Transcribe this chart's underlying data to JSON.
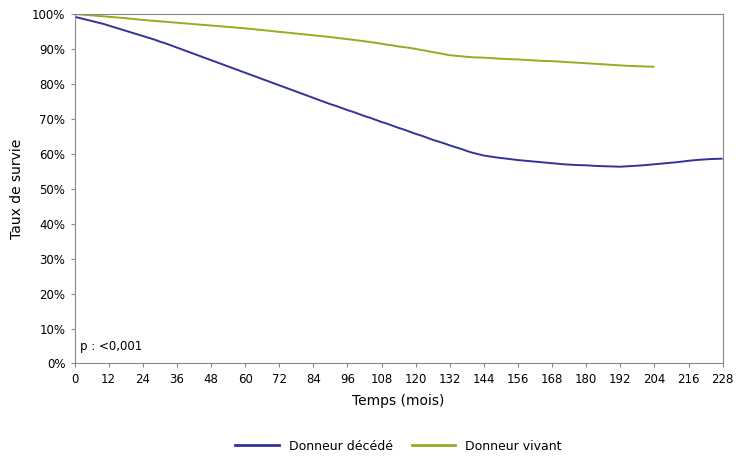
{
  "xlabel": "Temps (mois)",
  "ylabel": "Taux de survie",
  "annotation": "p : <0,001",
  "xticks": [
    0,
    12,
    24,
    36,
    48,
    60,
    72,
    84,
    96,
    108,
    120,
    132,
    144,
    156,
    168,
    180,
    192,
    204,
    216,
    228
  ],
  "yticks": [
    0,
    10,
    20,
    30,
    40,
    50,
    60,
    70,
    80,
    90,
    100
  ],
  "xlim": [
    0,
    228
  ],
  "ylim": [
    0,
    100
  ],
  "line_deceased_color": "#333399",
  "line_living_color": "#99aa22",
  "line_width": 1.4,
  "legend_deceased": "Donneur décédé",
  "legend_living": "Donneur vivant",
  "deceased_x": [
    0,
    2,
    4,
    6,
    8,
    10,
    12,
    14,
    16,
    18,
    20,
    22,
    24,
    26,
    28,
    30,
    32,
    34,
    36,
    38,
    40,
    42,
    44,
    46,
    48,
    50,
    52,
    54,
    56,
    58,
    60,
    62,
    64,
    66,
    68,
    70,
    72,
    74,
    76,
    78,
    80,
    82,
    84,
    86,
    88,
    90,
    92,
    94,
    96,
    98,
    100,
    102,
    104,
    106,
    108,
    110,
    112,
    114,
    116,
    118,
    120,
    122,
    124,
    126,
    128,
    130,
    132,
    134,
    136,
    138,
    140,
    142,
    144,
    148,
    152,
    156,
    160,
    164,
    168,
    172,
    176,
    180,
    184,
    188,
    192,
    196,
    200,
    204,
    208,
    212,
    216,
    220,
    224,
    228
  ],
  "deceased_y": [
    99.2,
    98.8,
    98.4,
    98.0,
    97.6,
    97.2,
    96.7,
    96.2,
    95.7,
    95.2,
    94.7,
    94.2,
    93.7,
    93.2,
    92.7,
    92.1,
    91.6,
    91.0,
    90.4,
    89.8,
    89.2,
    88.6,
    88.0,
    87.4,
    86.8,
    86.2,
    85.6,
    85.0,
    84.4,
    83.8,
    83.2,
    82.6,
    82.0,
    81.4,
    80.8,
    80.2,
    79.6,
    79.0,
    78.4,
    77.8,
    77.2,
    76.6,
    76.0,
    75.4,
    74.8,
    74.2,
    73.7,
    73.1,
    72.5,
    72.0,
    71.4,
    70.8,
    70.3,
    69.7,
    69.1,
    68.6,
    68.0,
    67.4,
    66.9,
    66.3,
    65.7,
    65.2,
    64.6,
    64.0,
    63.5,
    63.0,
    62.4,
    61.9,
    61.4,
    60.8,
    60.3,
    59.9,
    59.5,
    59.0,
    58.6,
    58.2,
    57.9,
    57.6,
    57.3,
    57.0,
    56.8,
    56.7,
    56.5,
    56.4,
    56.3,
    56.5,
    56.7,
    57.0,
    57.3,
    57.6,
    58.0,
    58.3,
    58.5,
    58.6
  ],
  "living_x": [
    0,
    6,
    12,
    18,
    24,
    30,
    36,
    42,
    48,
    54,
    60,
    66,
    72,
    78,
    84,
    90,
    96,
    102,
    108,
    110,
    112,
    114,
    116,
    118,
    120,
    122,
    124,
    126,
    128,
    130,
    132,
    136,
    140,
    144,
    148,
    152,
    156,
    160,
    164,
    168,
    172,
    176,
    180,
    184,
    188,
    192,
    196,
    200,
    204
  ],
  "living_y": [
    100,
    99.6,
    99.2,
    98.8,
    98.3,
    97.9,
    97.5,
    97.1,
    96.7,
    96.3,
    95.9,
    95.4,
    94.9,
    94.4,
    93.9,
    93.4,
    92.8,
    92.2,
    91.5,
    91.2,
    91.0,
    90.7,
    90.5,
    90.3,
    90.0,
    89.7,
    89.4,
    89.1,
    88.8,
    88.5,
    88.2,
    87.9,
    87.6,
    87.5,
    87.3,
    87.1,
    87.0,
    86.8,
    86.6,
    86.5,
    86.3,
    86.1,
    85.9,
    85.7,
    85.5,
    85.3,
    85.1,
    85.0,
    84.9
  ]
}
